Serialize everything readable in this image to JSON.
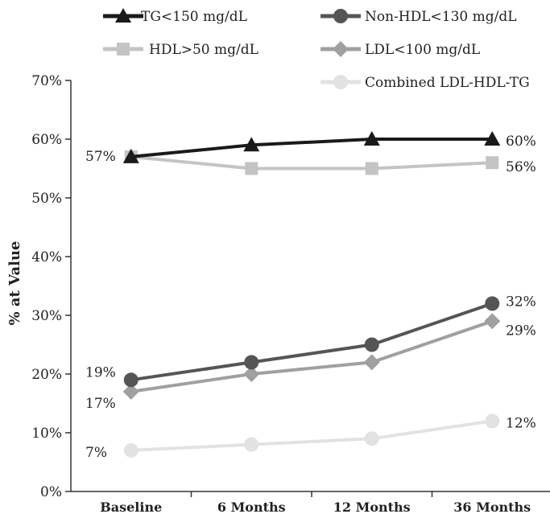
{
  "chart_data": {
    "type": "line",
    "title": "",
    "xlabel": "",
    "ylabel": "% at Value",
    "ylim": [
      0,
      70
    ],
    "y_ticks": [
      "0%",
      "10%",
      "20%",
      "30%",
      "40%",
      "50%",
      "60%",
      "70%"
    ],
    "categories": [
      "Baseline",
      "6 Months",
      "12 Months",
      "36 Months"
    ],
    "legend_position": "top",
    "series": [
      {
        "name": "TG<150 mg/dL",
        "values": [
          57,
          59,
          60,
          60
        ],
        "color": "#1a1a1a",
        "marker": "triangle"
      },
      {
        "name": "Non-HDL<130 mg/dL",
        "values": [
          19,
          22,
          25,
          32
        ],
        "color": "#555555",
        "marker": "circle"
      },
      {
        "name": "HDL>50 mg/dL",
        "values": [
          57,
          55,
          55,
          56
        ],
        "color": "#c4c4c4",
        "marker": "square"
      },
      {
        "name": "LDL<100 mg/dL",
        "values": [
          17,
          20,
          22,
          29
        ],
        "color": "#a0a0a0",
        "marker": "diamond"
      },
      {
        "name": "Combined LDL-HDL-TG",
        "values": [
          7,
          8,
          9,
          12
        ],
        "color": "#e2e2e2",
        "marker": "circle"
      }
    ],
    "data_labels": {
      "start": [
        {
          "text": "57%",
          "value": 57
        },
        {
          "text": "19%",
          "value": 19
        },
        {
          "text": "17%",
          "value": 17
        },
        {
          "text": "7%",
          "value": 7
        }
      ],
      "end": [
        {
          "text": "60%",
          "value": 60
        },
        {
          "text": "56%",
          "value": 56
        },
        {
          "text": "32%",
          "value": 32
        },
        {
          "text": "29%",
          "value": 29
        },
        {
          "text": "12%",
          "value": 12
        }
      ]
    }
  }
}
